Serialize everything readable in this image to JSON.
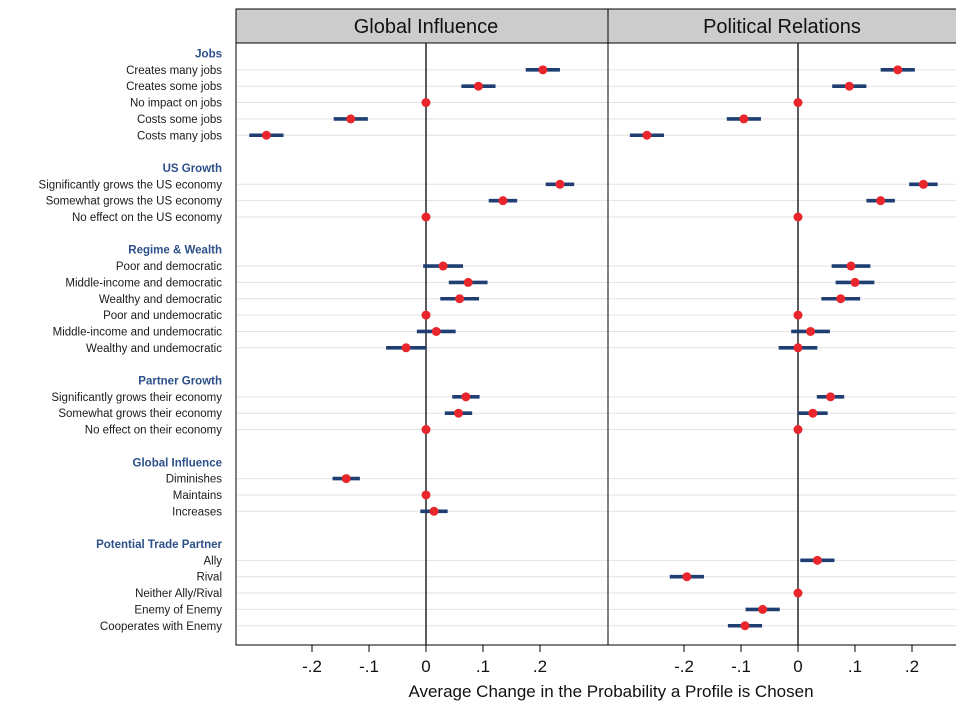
{
  "chart_data": {
    "type": "scatter",
    "subtype": "coefficient-plot",
    "xlabel": "Average Change in the Probability a Profile is Chosen",
    "xticks": [
      "-.2",
      "-.1",
      "0",
      ".1",
      ".2"
    ],
    "xtick_values": [
      -0.2,
      -0.1,
      0,
      0.1,
      0.2
    ],
    "xlim": [
      -0.34,
      0.27
    ],
    "colors": {
      "point": "#e8262b",
      "ci": "#1f3f73",
      "header": "#2d4f8a",
      "gridline": "#e2e2e2",
      "title_bg": "#cccccc"
    },
    "groups": [
      {
        "name": "Jobs",
        "levels": [
          "Creates many jobs",
          "Creates some jobs",
          "No impact on jobs",
          "Costs some jobs",
          "Costs many jobs"
        ]
      },
      {
        "name": "US Growth",
        "levels": [
          "Significantly grows the US economy",
          "Somewhat grows the US economy",
          "No effect on the US economy"
        ]
      },
      {
        "name": "Regime & Wealth",
        "levels": [
          "Poor and democratic",
          "Middle-income and democratic",
          "Wealthy and democratic",
          "Poor and undemocratic",
          "Middle-income and undemocratic",
          "Wealthy and undemocratic"
        ]
      },
      {
        "name": "Partner Growth",
        "levels": [
          "Significantly grows their economy",
          "Somewhat grows their economy",
          "No effect on their economy"
        ]
      },
      {
        "name": "Global Influence",
        "levels": [
          "Diminishes",
          "Maintains",
          "Increases"
        ]
      },
      {
        "name": "Potential Trade Partner",
        "levels": [
          "Ally",
          "Rival",
          "Neither Ally/Rival",
          "Enemy of Enemy",
          "Cooperates with Enemy"
        ]
      }
    ],
    "panels": [
      {
        "title": "Global Influence",
        "groups": [
          [
            [
              0.205,
              0.175,
              0.235
            ],
            [
              0.092,
              0.062,
              0.122
            ],
            [
              0,
              0,
              0
            ],
            [
              -0.132,
              -0.162,
              -0.102
            ],
            [
              -0.28,
              -0.31,
              -0.25
            ]
          ],
          [
            [
              0.235,
              0.21,
              0.26
            ],
            [
              0.135,
              0.11,
              0.16
            ],
            [
              0,
              0,
              0
            ]
          ],
          [
            [
              0.03,
              -0.005,
              0.065
            ],
            [
              0.074,
              0.04,
              0.108
            ],
            [
              0.059,
              0.025,
              0.093
            ],
            [
              0,
              0,
              0
            ],
            [
              0.018,
              -0.016,
              0.052
            ],
            [
              -0.035,
              -0.07,
              0
            ]
          ],
          [
            [
              0.07,
              0.046,
              0.094
            ],
            [
              0.057,
              0.033,
              0.081
            ],
            [
              0,
              0,
              0
            ]
          ],
          [
            [
              -0.14,
              -0.164,
              -0.116
            ],
            [
              0,
              0,
              0
            ],
            [
              0.014,
              -0.01,
              0.038
            ]
          ],
          [
            null,
            null,
            null,
            null,
            null
          ]
        ]
      },
      {
        "title": "Political Relations",
        "groups": [
          [
            [
              0.175,
              0.145,
              0.205
            ],
            [
              0.09,
              0.06,
              0.12
            ],
            [
              0,
              0,
              0
            ],
            [
              -0.095,
              -0.125,
              -0.065
            ],
            [
              -0.265,
              -0.295,
              -0.235
            ]
          ],
          [
            [
              0.22,
              0.195,
              0.245
            ],
            [
              0.145,
              0.12,
              0.17
            ],
            [
              0,
              0,
              0
            ]
          ],
          [
            [
              0.093,
              0.059,
              0.127
            ],
            [
              0.1,
              0.066,
              0.134
            ],
            [
              0.075,
              0.041,
              0.109
            ],
            [
              0,
              0,
              0
            ],
            [
              0.022,
              -0.012,
              0.056
            ],
            [
              0,
              -0.034,
              0.034
            ]
          ],
          [
            [
              0.057,
              0.033,
              0.081
            ],
            [
              0.026,
              0,
              0.052
            ],
            [
              0,
              0,
              0
            ]
          ],
          [
            null,
            null,
            null
          ],
          [
            [
              0.034,
              0.004,
              0.064
            ],
            [
              -0.195,
              -0.225,
              -0.165
            ],
            [
              0,
              0,
              0
            ],
            [
              -0.062,
              -0.092,
              -0.032
            ],
            [
              -0.093,
              -0.123,
              -0.063
            ]
          ]
        ]
      }
    ]
  }
}
